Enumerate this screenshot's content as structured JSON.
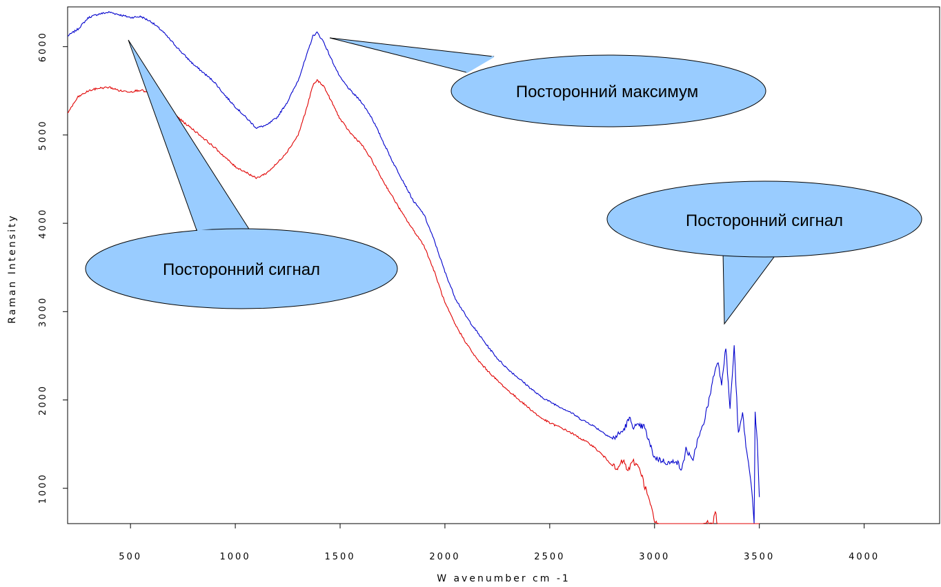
{
  "chart_data": {
    "type": "line",
    "xlabel": "W avenumber cm -1",
    "ylabel": "Raman Intensity",
    "xlim": [
      200,
      4360
    ],
    "ylim": [
      600,
      6450
    ],
    "xticks": [
      500,
      1000,
      1500,
      2000,
      2500,
      3000,
      3500,
      4000
    ],
    "yticks": [
      1000,
      2000,
      3000,
      4000,
      5000,
      6000
    ],
    "grid": false,
    "series": [
      {
        "color": "#0000cc",
        "points": [
          [
            200,
            6120
          ],
          [
            250,
            6200
          ],
          [
            300,
            6330
          ],
          [
            350,
            6370
          ],
          [
            400,
            6390
          ],
          [
            450,
            6360
          ],
          [
            500,
            6330
          ],
          [
            550,
            6340
          ],
          [
            600,
            6280
          ],
          [
            650,
            6180
          ],
          [
            700,
            6050
          ],
          [
            750,
            5920
          ],
          [
            800,
            5800
          ],
          [
            850,
            5700
          ],
          [
            900,
            5600
          ],
          [
            950,
            5450
          ],
          [
            1000,
            5320
          ],
          [
            1050,
            5200
          ],
          [
            1100,
            5080
          ],
          [
            1150,
            5110
          ],
          [
            1200,
            5200
          ],
          [
            1250,
            5380
          ],
          [
            1300,
            5620
          ],
          [
            1340,
            5900
          ],
          [
            1370,
            6120
          ],
          [
            1390,
            6160
          ],
          [
            1420,
            6060
          ],
          [
            1450,
            5900
          ],
          [
            1500,
            5650
          ],
          [
            1550,
            5500
          ],
          [
            1600,
            5380
          ],
          [
            1650,
            5200
          ],
          [
            1700,
            4950
          ],
          [
            1750,
            4700
          ],
          [
            1800,
            4480
          ],
          [
            1850,
            4250
          ],
          [
            1900,
            4100
          ],
          [
            1950,
            3800
          ],
          [
            2000,
            3450
          ],
          [
            2050,
            3150
          ],
          [
            2100,
            2950
          ],
          [
            2150,
            2780
          ],
          [
            2200,
            2620
          ],
          [
            2250,
            2470
          ],
          [
            2300,
            2350
          ],
          [
            2350,
            2250
          ],
          [
            2400,
            2150
          ],
          [
            2450,
            2050
          ],
          [
            2500,
            1980
          ],
          [
            2550,
            1920
          ],
          [
            2600,
            1860
          ],
          [
            2650,
            1780
          ],
          [
            2700,
            1720
          ],
          [
            2750,
            1640
          ],
          [
            2800,
            1560
          ],
          [
            2850,
            1650
          ],
          [
            2880,
            1790
          ],
          [
            2900,
            1700
          ],
          [
            2950,
            1700
          ],
          [
            2980,
            1480
          ],
          [
            3000,
            1350
          ],
          [
            3050,
            1300
          ],
          [
            3080,
            1280
          ],
          [
            3100,
            1330
          ],
          [
            3130,
            1200
          ],
          [
            3150,
            1450
          ],
          [
            3180,
            1300
          ],
          [
            3200,
            1500
          ],
          [
            3230,
            1700
          ],
          [
            3260,
            2000
          ],
          [
            3280,
            2250
          ],
          [
            3300,
            2450
          ],
          [
            3320,
            2200
          ],
          [
            3340,
            2600
          ],
          [
            3360,
            1900
          ],
          [
            3380,
            2600
          ],
          [
            3400,
            1600
          ],
          [
            3420,
            1850
          ],
          [
            3440,
            1400
          ],
          [
            3460,
            1100
          ],
          [
            3475,
            620
          ],
          [
            3480,
            1850
          ],
          [
            3490,
            1500
          ],
          [
            3500,
            900
          ]
        ]
      },
      {
        "color": "#e00000",
        "points": [
          [
            200,
            5250
          ],
          [
            250,
            5430
          ],
          [
            300,
            5500
          ],
          [
            350,
            5530
          ],
          [
            400,
            5540
          ],
          [
            450,
            5500
          ],
          [
            500,
            5490
          ],
          [
            550,
            5510
          ],
          [
            600,
            5460
          ],
          [
            650,
            5360
          ],
          [
            700,
            5260
          ],
          [
            750,
            5150
          ],
          [
            800,
            5060
          ],
          [
            850,
            4960
          ],
          [
            900,
            4860
          ],
          [
            950,
            4750
          ],
          [
            1000,
            4640
          ],
          [
            1050,
            4580
          ],
          [
            1100,
            4510
          ],
          [
            1150,
            4570
          ],
          [
            1200,
            4680
          ],
          [
            1250,
            4820
          ],
          [
            1300,
            5000
          ],
          [
            1340,
            5300
          ],
          [
            1370,
            5560
          ],
          [
            1390,
            5620
          ],
          [
            1420,
            5560
          ],
          [
            1450,
            5420
          ],
          [
            1500,
            5180
          ],
          [
            1550,
            5020
          ],
          [
            1600,
            4900
          ],
          [
            1650,
            4720
          ],
          [
            1700,
            4500
          ],
          [
            1750,
            4300
          ],
          [
            1800,
            4100
          ],
          [
            1850,
            3920
          ],
          [
            1900,
            3750
          ],
          [
            1950,
            3450
          ],
          [
            2000,
            3100
          ],
          [
            2050,
            2850
          ],
          [
            2100,
            2650
          ],
          [
            2150,
            2470
          ],
          [
            2200,
            2340
          ],
          [
            2250,
            2220
          ],
          [
            2300,
            2110
          ],
          [
            2350,
            2010
          ],
          [
            2400,
            1910
          ],
          [
            2450,
            1810
          ],
          [
            2500,
            1740
          ],
          [
            2550,
            1690
          ],
          [
            2600,
            1630
          ],
          [
            2650,
            1560
          ],
          [
            2700,
            1490
          ],
          [
            2750,
            1380
          ],
          [
            2800,
            1260
          ],
          [
            2820,
            1200
          ],
          [
            2850,
            1320
          ],
          [
            2870,
            1200
          ],
          [
            2900,
            1300
          ],
          [
            2930,
            1230
          ],
          [
            2950,
            1050
          ],
          [
            2980,
            820
          ],
          [
            3000,
            620
          ],
          [
            3020,
            600
          ],
          [
            3230,
            600
          ],
          [
            3280,
            620
          ],
          [
            3290,
            740
          ],
          [
            3300,
            600
          ],
          [
            3500,
            600
          ]
        ]
      }
    ],
    "annotations": [
      {
        "text": "Посторонний максимум"
      },
      {
        "text": "Посторонний сигнал"
      },
      {
        "text": "Посторонний сигнал"
      }
    ]
  }
}
